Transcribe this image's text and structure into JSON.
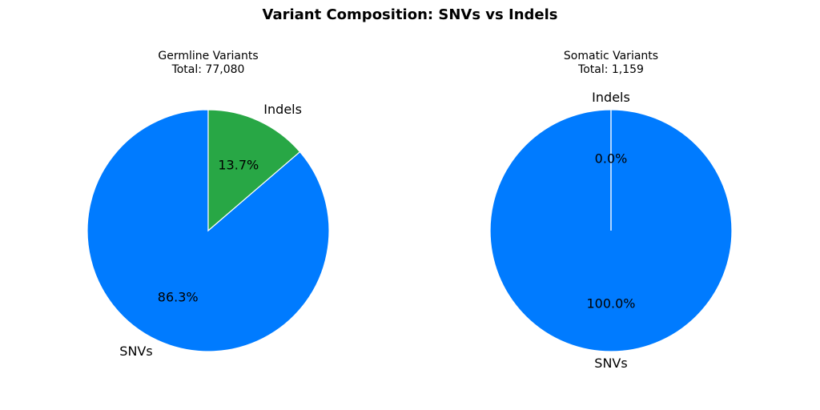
{
  "title": "Variant Composition: SNVs vs Indels",
  "colors": {
    "SNVs": "#007bff",
    "Indels": "#28a745",
    "edge": "#ffffff"
  },
  "chart_data": [
    {
      "type": "pie",
      "title": "Germline Variants",
      "subtitle": "Total: 77,080",
      "labels": [
        "SNVs",
        "Indels"
      ],
      "values": [
        86.3,
        13.7
      ],
      "pct_labels": [
        "86.3%",
        "13.7%"
      ],
      "start_angle_deg": 90,
      "direction": "counterclockwise"
    },
    {
      "type": "pie",
      "title": "Somatic Variants",
      "subtitle": "Total: 1,159",
      "labels": [
        "SNVs",
        "Indels"
      ],
      "values": [
        100.0,
        0.0
      ],
      "pct_labels": [
        "100.0%",
        "0.0%"
      ],
      "start_angle_deg": 90,
      "direction": "counterclockwise"
    }
  ]
}
